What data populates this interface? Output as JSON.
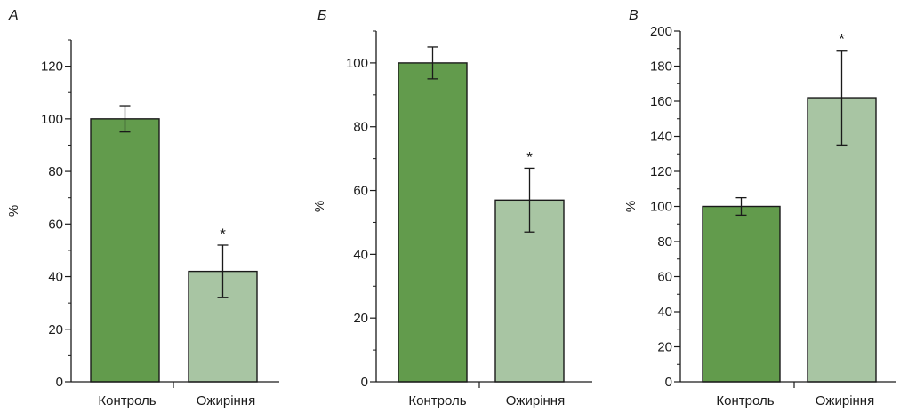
{
  "chart_data": [
    {
      "type": "bar",
      "title": "А",
      "ylabel": "%",
      "xlabel": "",
      "categories": [
        "Контроль",
        "Ожиріння"
      ],
      "values": [
        100,
        42
      ],
      "errors": [
        5,
        10
      ],
      "significance": [
        "",
        "*"
      ],
      "bar_colors": [
        "#629b4c",
        "#a8c5a3"
      ],
      "ylim": [
        0,
        130
      ],
      "yticks": [
        0,
        20,
        40,
        60,
        80,
        100,
        120
      ],
      "minor_tick_step": 10
    },
    {
      "type": "bar",
      "title": "Б",
      "ylabel": "%",
      "xlabel": "",
      "categories": [
        "Контроль",
        "Ожиріння"
      ],
      "values": [
        100,
        57
      ],
      "errors": [
        5,
        10
      ],
      "significance": [
        "",
        "*"
      ],
      "bar_colors": [
        "#629b4c",
        "#a8c5a3"
      ],
      "ylim": [
        0,
        110
      ],
      "yticks": [
        0,
        20,
        40,
        60,
        80,
        100
      ],
      "minor_tick_step": 10
    },
    {
      "type": "bar",
      "title": "В",
      "ylabel": "%",
      "xlabel": "",
      "categories": [
        "Контроль",
        "Ожиріння"
      ],
      "values": [
        100,
        162
      ],
      "errors": [
        5,
        27
      ],
      "significance": [
        "",
        "*"
      ],
      "bar_colors": [
        "#629b4c",
        "#a8c5a3"
      ],
      "ylim": [
        0,
        200
      ],
      "yticks": [
        0,
        20,
        40,
        60,
        80,
        100,
        120,
        140,
        160,
        180,
        200
      ],
      "minor_tick_step": 10
    }
  ]
}
